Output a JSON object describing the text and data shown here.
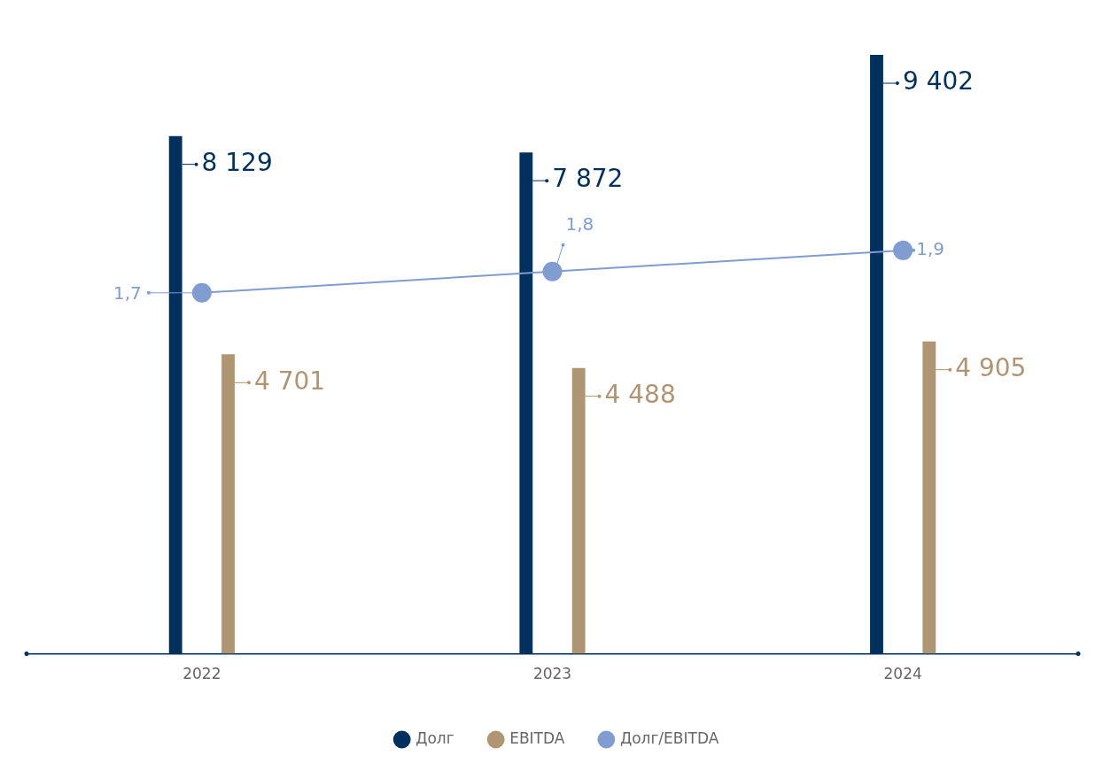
{
  "chart_data": {
    "type": "bar",
    "categories": [
      "2022",
      "2023",
      "2024"
    ],
    "grid": false,
    "legend": "bottom",
    "series": [
      {
        "name": "Долг",
        "color": "#00305e",
        "values": [
          8129,
          7872,
          9402
        ],
        "value_labels": [
          "8 129",
          "7 872",
          "9 402"
        ]
      },
      {
        "name": "EBITDA",
        "color": "#b09573",
        "values": [
          4701,
          4488,
          4905
        ],
        "value_labels": [
          "4 701",
          "4 488",
          "4 905"
        ]
      },
      {
        "name": "Долг/EBITDA",
        "type": "line",
        "axis": "y2",
        "color": "#7f9dd0",
        "marker": "circle",
        "values": [
          1.7,
          1.8,
          1.9
        ],
        "value_labels": [
          "1,7",
          "1,8",
          "1,9"
        ]
      }
    ]
  }
}
